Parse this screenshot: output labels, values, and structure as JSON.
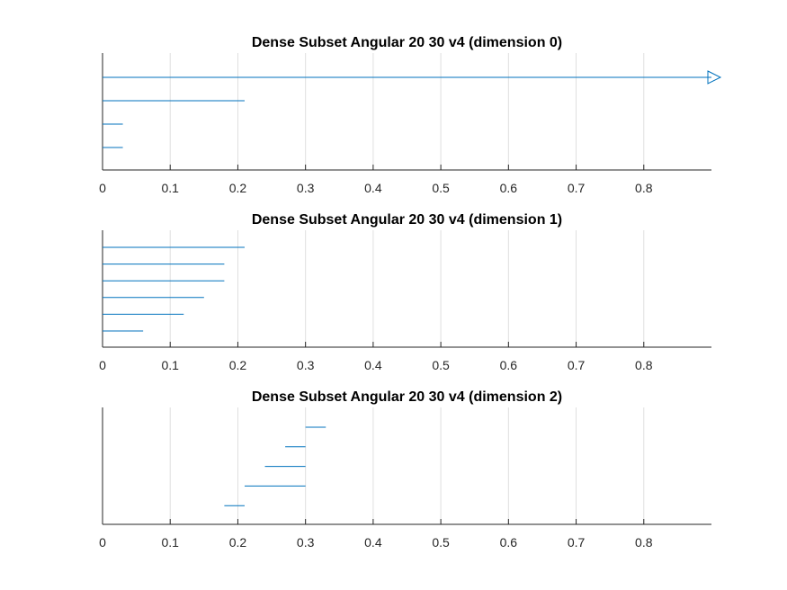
{
  "chart_data": [
    {
      "type": "interval",
      "title": "Dense Subset Angular 20 30 v4 (dimension 0)",
      "xlim": [
        0,
        0.9
      ],
      "xticks": [
        0,
        0.1,
        0.2,
        0.3,
        0.4,
        0.5,
        0.6,
        0.7,
        0.8
      ],
      "x_grid": true,
      "intervals": [
        {
          "start": 0,
          "end": 0.9,
          "arrow": true
        },
        {
          "start": 0,
          "end": 0.21
        },
        {
          "start": 0,
          "end": 0.03
        },
        {
          "start": 0,
          "end": 0.03
        }
      ]
    },
    {
      "type": "interval",
      "title": "Dense Subset Angular 20 30 v4 (dimension 1)",
      "xlim": [
        0,
        0.9
      ],
      "xticks": [
        0,
        0.1,
        0.2,
        0.3,
        0.4,
        0.5,
        0.6,
        0.7,
        0.8
      ],
      "x_grid": true,
      "intervals": [
        {
          "start": 0,
          "end": 0.21
        },
        {
          "start": 0,
          "end": 0.18
        },
        {
          "start": 0,
          "end": 0.18
        },
        {
          "start": 0,
          "end": 0.15
        },
        {
          "start": 0,
          "end": 0.12
        },
        {
          "start": 0,
          "end": 0.06
        }
      ]
    },
    {
      "type": "interval",
      "title": "Dense Subset Angular 20 30 v4 (dimension 2)",
      "xlim": [
        0,
        0.9
      ],
      "xticks": [
        0,
        0.1,
        0.2,
        0.3,
        0.4,
        0.5,
        0.6,
        0.7,
        0.8
      ],
      "x_grid": true,
      "intervals": [
        {
          "start": 0.3,
          "end": 0.33
        },
        {
          "start": 0.27,
          "end": 0.3
        },
        {
          "start": 0.24,
          "end": 0.3
        },
        {
          "start": 0.21,
          "end": 0.3
        },
        {
          "start": 0.18,
          "end": 0.21
        }
      ]
    }
  ],
  "colors": {
    "series": "#0072bd",
    "axis": "#262626",
    "grid": "#dfdfdf",
    "title": "#000000"
  }
}
